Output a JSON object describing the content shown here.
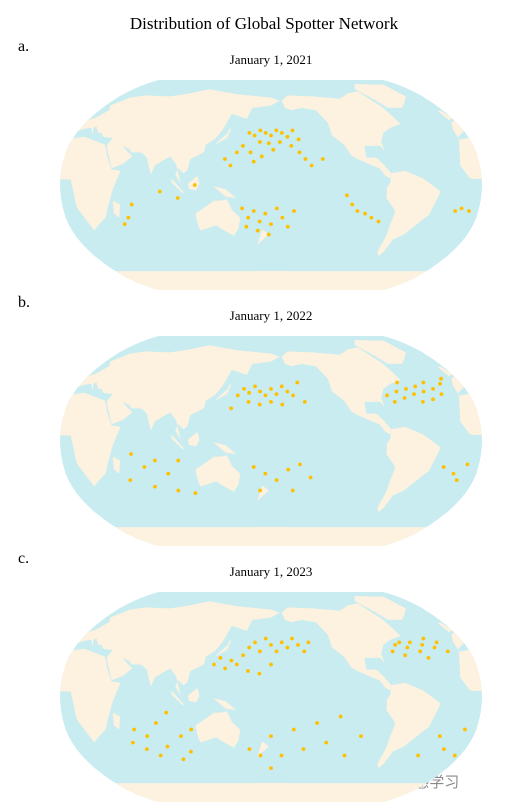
{
  "title": "Distribution of Global Spotter Network",
  "dot_color": "#ffc000",
  "ocean_color": "#c8ecf0",
  "land_color": "#fdf1df",
  "panels": [
    {
      "label": "a.",
      "date": "January 1, 2021",
      "points": {
        "lon": [
          160,
          165,
          170,
          175,
          180,
          185,
          190,
          195,
          170,
          178,
          188,
          198,
          155,
          150,
          162,
          172,
          182,
          200,
          205,
          165,
          140,
          145,
          205,
          210,
          215,
          225,
          155,
          160,
          165,
          170,
          175,
          180,
          185,
          190,
          195,
          168,
          178,
          200,
          158,
          245,
          250,
          255,
          262,
          268,
          275,
          85,
          100,
          60,
          115,
          340,
          345,
          352,
          55,
          50
        ],
        "lat": [
          40,
          38,
          42,
          40,
          38,
          42,
          40,
          37,
          33,
          32,
          33,
          30,
          30,
          25,
          25,
          22,
          27,
          42,
          35,
          18,
          20,
          15,
          25,
          20,
          15,
          20,
          -18,
          -25,
          -20,
          -28,
          -22,
          -30,
          -18,
          -25,
          -32,
          -35,
          -38,
          -20,
          -32,
          -8,
          -15,
          -20,
          -22,
          -25,
          -28,
          -5,
          -10,
          -15,
          0,
          -20,
          -18,
          -20,
          -25,
          -30
        ]
      }
    },
    {
      "label": "b.",
      "date": "January 1, 2022",
      "points": {
        "lon": [
          150,
          155,
          160,
          165,
          170,
          175,
          180,
          185,
          190,
          195,
          200,
          160,
          170,
          180,
          190,
          145,
          205,
          210,
          285,
          290,
          295,
          300,
          305,
          310,
          315,
          320,
          325,
          330,
          335,
          340,
          300,
          315,
          325,
          345,
          60,
          70,
          80,
          90,
          100,
          55,
          75,
          95,
          110,
          165,
          175,
          185,
          195,
          205,
          215,
          170,
          200,
          330,
          340,
          350,
          345
        ],
        "lat": [
          35,
          40,
          37,
          42,
          38,
          35,
          40,
          36,
          42,
          38,
          35,
          30,
          28,
          30,
          28,
          25,
          45,
          30,
          35,
          30,
          38,
          33,
          40,
          36,
          42,
          38,
          45,
          40,
          36,
          44,
          45,
          30,
          32,
          48,
          -10,
          -20,
          -15,
          -25,
          -15,
          -30,
          -35,
          -38,
          -40,
          -20,
          -25,
          -30,
          -22,
          -18,
          -28,
          -38,
          -38,
          -20,
          -25,
          -18,
          -30
        ]
      }
    },
    {
      "label": "c.",
      "date": "January 1, 2023",
      "points": {
        "lon": [
          130,
          135,
          140,
          145,
          150,
          155,
          160,
          165,
          170,
          175,
          180,
          185,
          190,
          195,
          200,
          205,
          210,
          215,
          160,
          170,
          180,
          290,
          295,
          300,
          305,
          310,
          315,
          320,
          325,
          330,
          335,
          340,
          300,
          320,
          55,
          60,
          65,
          70,
          80,
          85,
          90,
          100,
          105,
          110,
          75,
          95,
          160,
          170,
          180,
          190,
          200,
          210,
          220,
          230,
          240,
          250,
          260,
          180,
          330,
          340,
          350,
          355,
          320
        ],
        "lat": [
          25,
          30,
          22,
          28,
          25,
          32,
          38,
          42,
          35,
          45,
          40,
          35,
          42,
          38,
          45,
          40,
          35,
          42,
          20,
          18,
          25,
          35,
          40,
          32,
          38,
          42,
          35,
          40,
          45,
          38,
          42,
          35,
          42,
          30,
          -35,
          -25,
          -40,
          -30,
          -20,
          -38,
          -12,
          -30,
          -42,
          -25,
          -45,
          -48,
          -40,
          -45,
          -30,
          -45,
          -25,
          -40,
          -20,
          -35,
          -15,
          -45,
          -30,
          -55,
          -30,
          -40,
          -25,
          -45,
          -45
        ]
      }
    }
  ],
  "watermark": "公众号 · 海洋遥感学习"
}
